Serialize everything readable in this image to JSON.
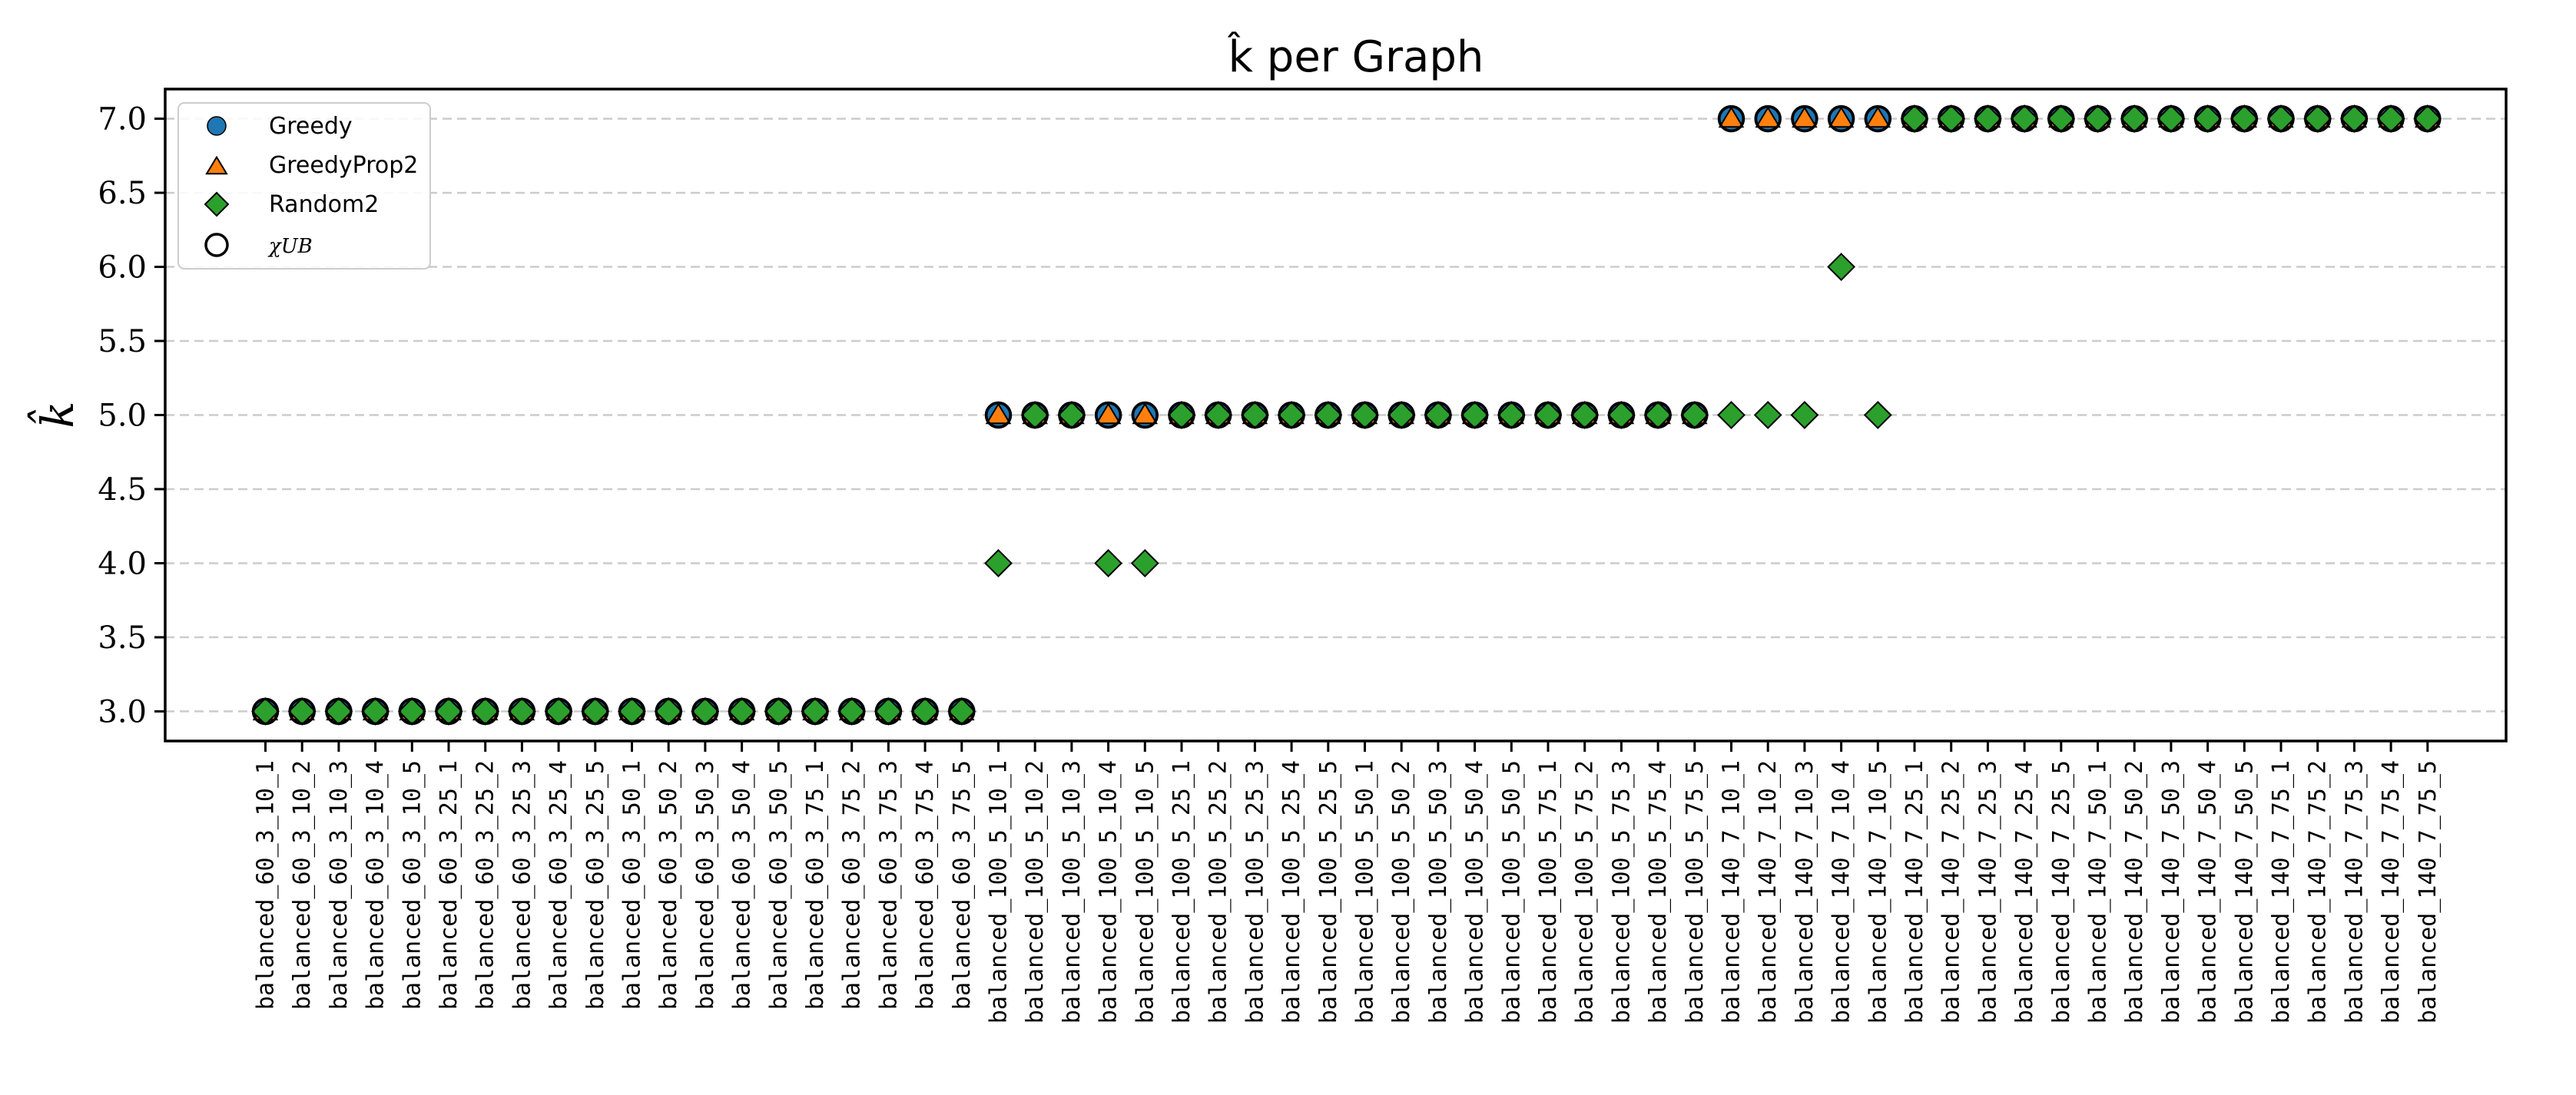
{
  "chart_data": {
    "type": "scatter",
    "title": "k̂ per Graph",
    "ylabel": "k̂",
    "xlabel": "",
    "ylim": [
      2.8,
      7.2
    ],
    "yticks": [
      "3.0",
      "3.5",
      "4.0",
      "4.5",
      "5.0",
      "5.5",
      "6.0",
      "6.5",
      "7.0"
    ],
    "grid": "horizontal-dashed",
    "legend_position": "upper-left",
    "categories": [
      "balanced_60_3_10_1",
      "balanced_60_3_10_2",
      "balanced_60_3_10_3",
      "balanced_60_3_10_4",
      "balanced_60_3_10_5",
      "balanced_60_3_25_1",
      "balanced_60_3_25_2",
      "balanced_60_3_25_3",
      "balanced_60_3_25_4",
      "balanced_60_3_25_5",
      "balanced_60_3_50_1",
      "balanced_60_3_50_2",
      "balanced_60_3_50_3",
      "balanced_60_3_50_4",
      "balanced_60_3_50_5",
      "balanced_60_3_75_1",
      "balanced_60_3_75_2",
      "balanced_60_3_75_3",
      "balanced_60_3_75_4",
      "balanced_60_3_75_5",
      "balanced_100_5_10_1",
      "balanced_100_5_10_2",
      "balanced_100_5_10_3",
      "balanced_100_5_10_4",
      "balanced_100_5_10_5",
      "balanced_100_5_25_1",
      "balanced_100_5_25_2",
      "balanced_100_5_25_3",
      "balanced_100_5_25_4",
      "balanced_100_5_25_5",
      "balanced_100_5_50_1",
      "balanced_100_5_50_2",
      "balanced_100_5_50_3",
      "balanced_100_5_50_4",
      "balanced_100_5_50_5",
      "balanced_100_5_75_1",
      "balanced_100_5_75_2",
      "balanced_100_5_75_3",
      "balanced_100_5_75_4",
      "balanced_100_5_75_5",
      "balanced_140_7_10_1",
      "balanced_140_7_10_2",
      "balanced_140_7_10_3",
      "balanced_140_7_10_4",
      "balanced_140_7_10_5",
      "balanced_140_7_25_1",
      "balanced_140_7_25_2",
      "balanced_140_7_25_3",
      "balanced_140_7_25_4",
      "balanced_140_7_25_5",
      "balanced_140_7_50_1",
      "balanced_140_7_50_2",
      "balanced_140_7_50_3",
      "balanced_140_7_50_4",
      "balanced_140_7_50_5",
      "balanced_140_7_75_1",
      "balanced_140_7_75_2",
      "balanced_140_7_75_3",
      "balanced_140_7_75_4",
      "balanced_140_7_75_5"
    ],
    "series": [
      {
        "name": "Greedy",
        "marker": "circle",
        "color": "#1f77b4",
        "values": [
          3,
          3,
          3,
          3,
          3,
          3,
          3,
          3,
          3,
          3,
          3,
          3,
          3,
          3,
          3,
          3,
          3,
          3,
          3,
          3,
          5,
          5,
          5,
          5,
          5,
          5,
          5,
          5,
          5,
          5,
          5,
          5,
          5,
          5,
          5,
          5,
          5,
          5,
          5,
          5,
          7,
          7,
          7,
          7,
          7,
          7,
          7,
          7,
          7,
          7,
          7,
          7,
          7,
          7,
          7,
          7,
          7,
          7,
          7,
          7
        ]
      },
      {
        "name": "GreedyProp2",
        "marker": "triangle",
        "color": "#ff7f0e",
        "values": [
          3,
          3,
          3,
          3,
          3,
          3,
          3,
          3,
          3,
          3,
          3,
          3,
          3,
          3,
          3,
          3,
          3,
          3,
          3,
          3,
          5,
          5,
          5,
          5,
          5,
          5,
          5,
          5,
          5,
          5,
          5,
          5,
          5,
          5,
          5,
          5,
          5,
          5,
          5,
          5,
          7,
          7,
          7,
          7,
          7,
          7,
          7,
          7,
          7,
          7,
          7,
          7,
          7,
          7,
          7,
          7,
          7,
          7,
          7,
          7
        ]
      },
      {
        "name": "Random2",
        "marker": "diamond",
        "color": "#2ca02c",
        "values": [
          3,
          3,
          3,
          3,
          3,
          3,
          3,
          3,
          3,
          3,
          3,
          3,
          3,
          3,
          3,
          3,
          3,
          3,
          3,
          3,
          4,
          5,
          5,
          4,
          4,
          5,
          5,
          5,
          5,
          5,
          5,
          5,
          5,
          5,
          5,
          5,
          5,
          5,
          5,
          5,
          5,
          5,
          5,
          6,
          5,
          7,
          7,
          7,
          7,
          7,
          7,
          7,
          7,
          7,
          7,
          7,
          7,
          7,
          7,
          7
        ]
      },
      {
        "name": "χUB",
        "marker": "open-circle",
        "color": "#000000",
        "values": [
          3,
          3,
          3,
          3,
          3,
          3,
          3,
          3,
          3,
          3,
          3,
          3,
          3,
          3,
          3,
          3,
          3,
          3,
          3,
          3,
          5,
          5,
          5,
          5,
          5,
          5,
          5,
          5,
          5,
          5,
          5,
          5,
          5,
          5,
          5,
          5,
          5,
          5,
          5,
          5,
          7,
          7,
          7,
          7,
          7,
          7,
          7,
          7,
          7,
          7,
          7,
          7,
          7,
          7,
          7,
          7,
          7,
          7,
          7,
          7
        ]
      }
    ],
    "legend": [
      {
        "label": "Greedy",
        "marker": "circle"
      },
      {
        "label": "GreedyProp2",
        "marker": "triangle"
      },
      {
        "label": "Random2",
        "marker": "diamond"
      },
      {
        "label": "χUB",
        "marker": "open-circle"
      }
    ]
  }
}
